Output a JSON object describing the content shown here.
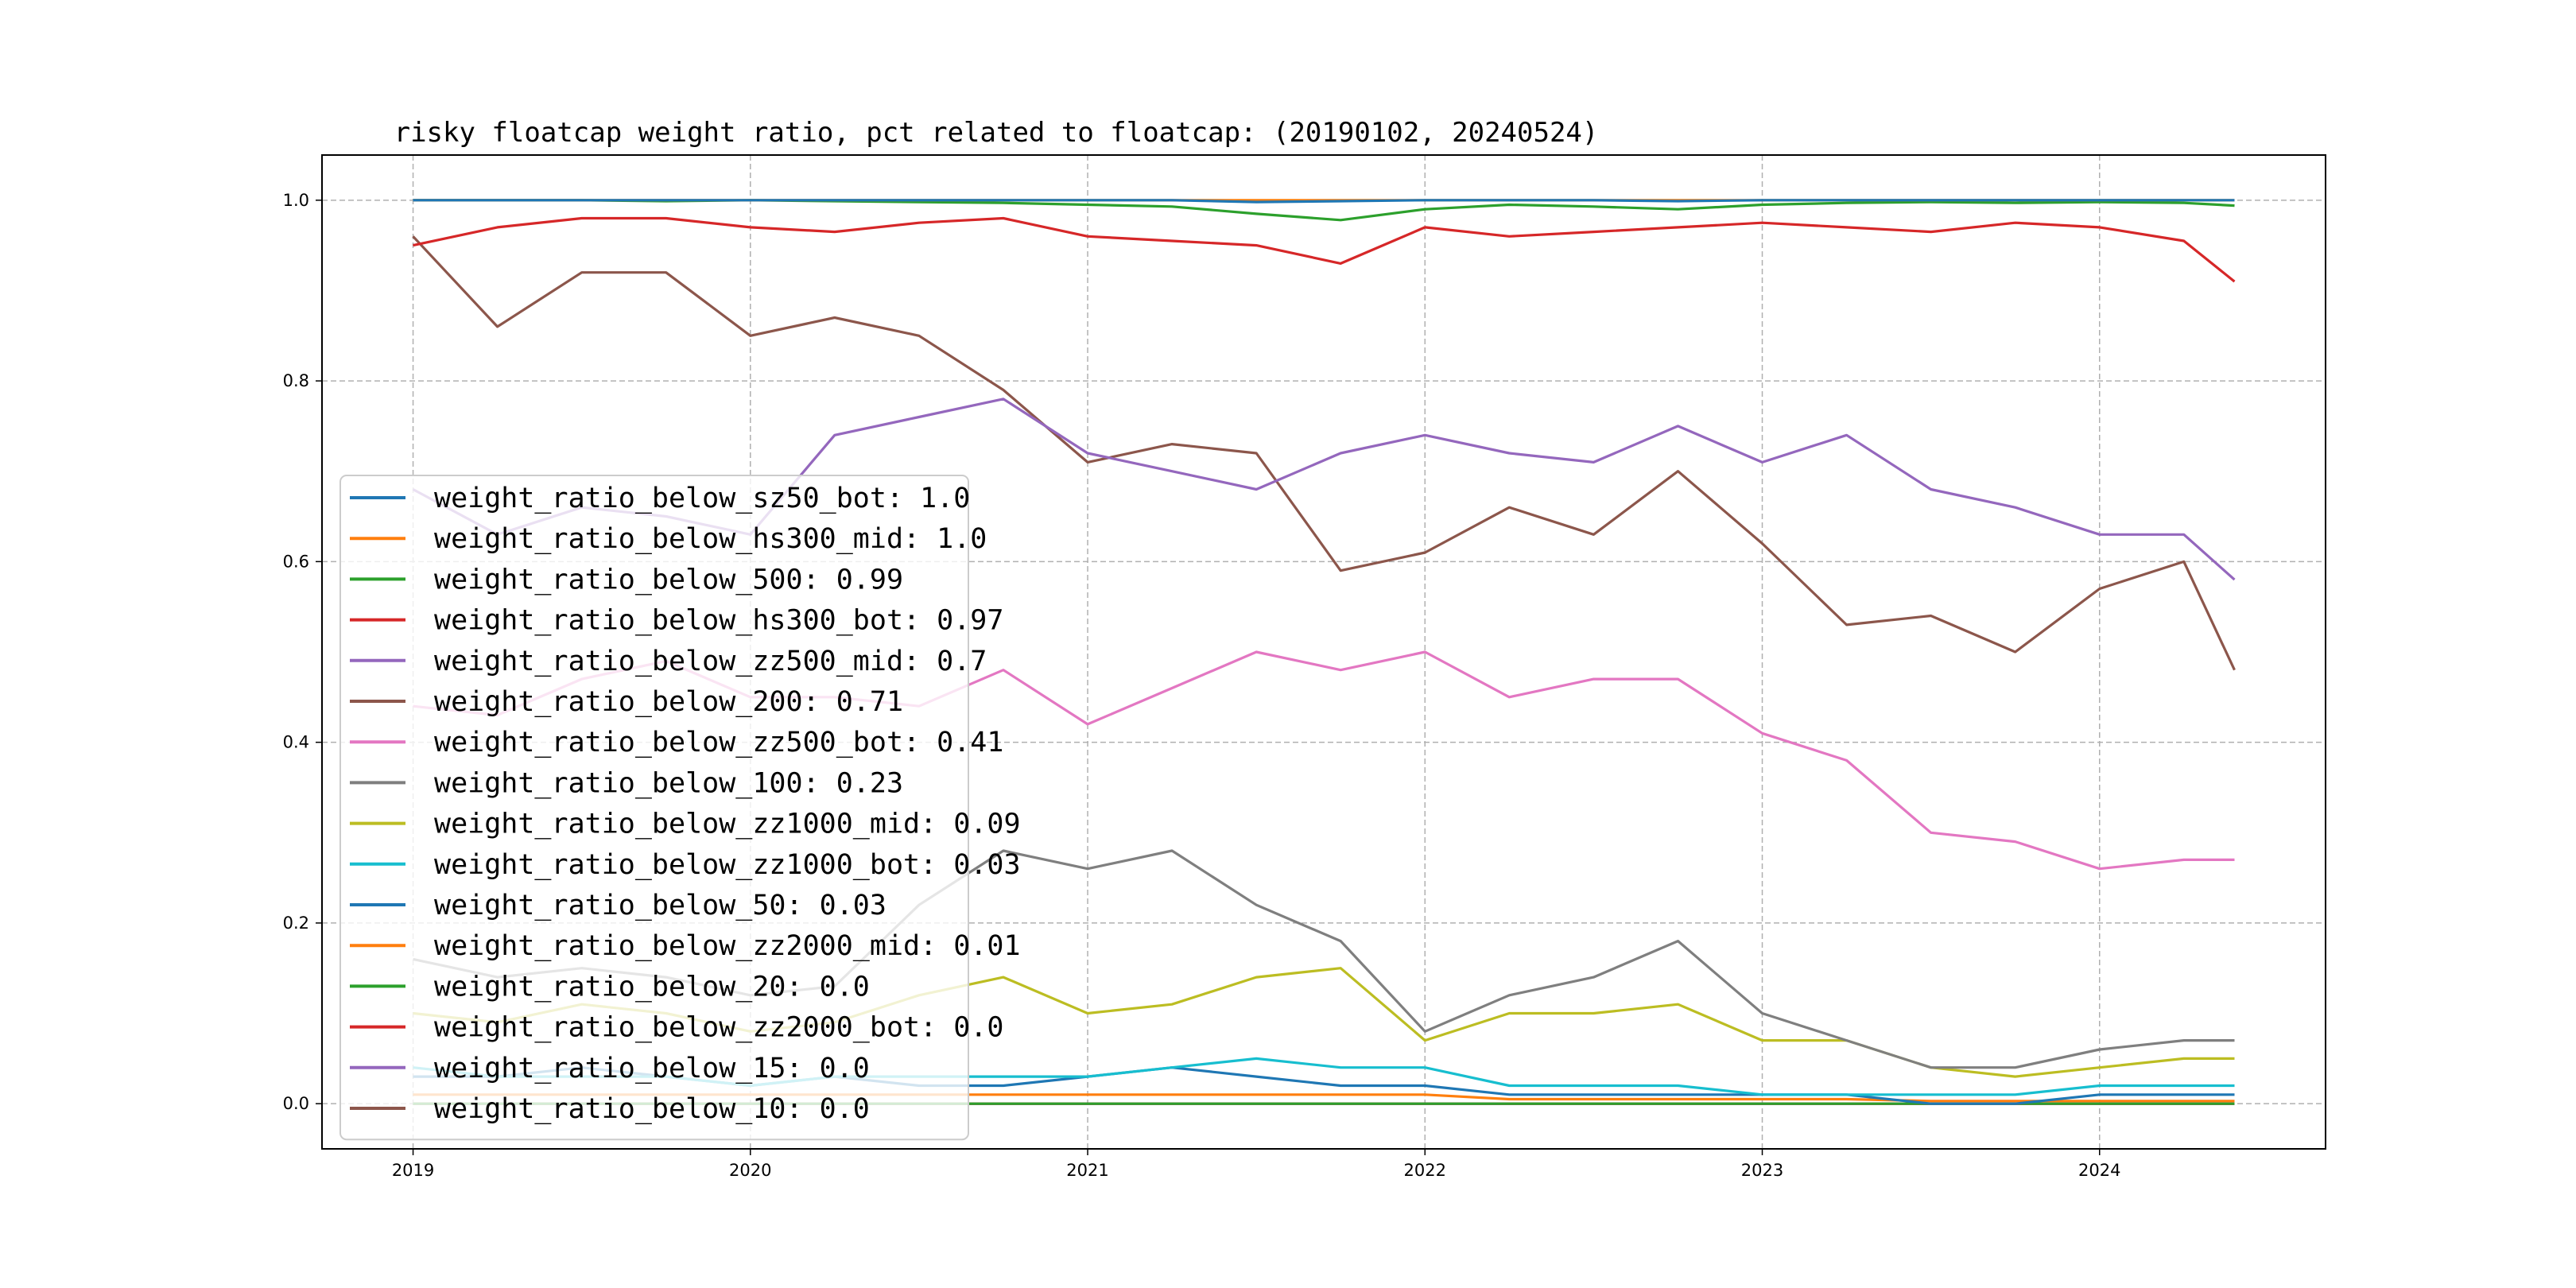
{
  "chart_data": {
    "type": "line",
    "title": "risky floatcap weight ratio, pct related to floatcap: (20190102, 20240524)",
    "xlabel": "",
    "ylabel": "",
    "xlim": [
      2018.73,
      2024.67
    ],
    "ylim": [
      -0.05,
      1.05
    ],
    "grid": true,
    "grid_style": "dashed",
    "legend_position": "center-left",
    "xticks": [
      {
        "value": 2019,
        "label": "2019"
      },
      {
        "value": 2020,
        "label": "2020"
      },
      {
        "value": 2021,
        "label": "2021"
      },
      {
        "value": 2022,
        "label": "2022"
      },
      {
        "value": 2023,
        "label": "2023"
      },
      {
        "value": 2024,
        "label": "2024"
      }
    ],
    "yticks": [
      {
        "value": 0.0,
        "label": "0.0"
      },
      {
        "value": 0.2,
        "label": "0.2"
      },
      {
        "value": 0.4,
        "label": "0.4"
      },
      {
        "value": 0.6,
        "label": "0.6"
      },
      {
        "value": 0.8,
        "label": "0.8"
      },
      {
        "value": 1.0,
        "label": "1.0"
      }
    ],
    "x": [
      2019.0,
      2019.25,
      2019.5,
      2019.75,
      2020.0,
      2020.25,
      2020.5,
      2020.75,
      2021.0,
      2021.25,
      2021.5,
      2021.75,
      2022.0,
      2022.25,
      2022.5,
      2022.75,
      2023.0,
      2023.25,
      2023.5,
      2023.75,
      2024.0,
      2024.25,
      2024.4
    ],
    "series": [
      {
        "name": "weight_ratio_below_sz50_bot",
        "legend": "weight_ratio_below_sz50_bot: 1.0",
        "color": "#1f77b4",
        "values": [
          1.0,
          1.0,
          1.0,
          1.0,
          1.0,
          1.0,
          1.0,
          1.0,
          1.0,
          1.0,
          0.998,
          0.999,
          1.0,
          1.0,
          1.0,
          0.999,
          1.0,
          1.0,
          1.0,
          1.0,
          1.0,
          1.0,
          1.0
        ]
      },
      {
        "name": "weight_ratio_below_hs300_mid",
        "legend": "weight_ratio_below_hs300_mid: 1.0",
        "color": "#ff7f0e",
        "values": [
          1.0,
          1.0,
          1.0,
          1.0,
          1.0,
          1.0,
          1.0,
          1.0,
          1.0,
          1.0,
          1.0,
          1.0,
          1.0,
          1.0,
          1.0,
          1.0,
          1.0,
          1.0,
          1.0,
          1.0,
          1.0,
          1.0,
          1.0
        ]
      },
      {
        "name": "weight_ratio_below_500",
        "legend": "weight_ratio_below_500: 0.99",
        "color": "#2ca02c",
        "values": [
          1.0,
          1.0,
          1.0,
          0.999,
          1.0,
          0.999,
          0.998,
          0.997,
          0.995,
          0.993,
          0.985,
          0.978,
          0.99,
          0.995,
          0.993,
          0.99,
          0.995,
          0.997,
          0.998,
          0.997,
          0.998,
          0.997,
          0.994
        ]
      },
      {
        "name": "weight_ratio_below_hs300_bot",
        "legend": "weight_ratio_below_hs300_bot: 0.97",
        "color": "#d62728",
        "values": [
          0.95,
          0.97,
          0.98,
          0.98,
          0.97,
          0.965,
          0.975,
          0.98,
          0.96,
          0.955,
          0.95,
          0.93,
          0.97,
          0.96,
          0.965,
          0.97,
          0.975,
          0.97,
          0.965,
          0.975,
          0.97,
          0.955,
          0.91
        ]
      },
      {
        "name": "weight_ratio_below_zz500_mid",
        "legend": "weight_ratio_below_zz500_mid: 0.7",
        "color": "#9467bd",
        "values": [
          0.68,
          0.63,
          0.66,
          0.65,
          0.63,
          0.74,
          0.76,
          0.78,
          0.72,
          0.7,
          0.68,
          0.72,
          0.74,
          0.72,
          0.71,
          0.75,
          0.71,
          0.74,
          0.68,
          0.66,
          0.63,
          0.63,
          0.58
        ]
      },
      {
        "name": "weight_ratio_below_200",
        "legend": "weight_ratio_below_200: 0.71",
        "color": "#8c564b",
        "values": [
          0.96,
          0.86,
          0.92,
          0.92,
          0.85,
          0.87,
          0.85,
          0.79,
          0.71,
          0.73,
          0.72,
          0.59,
          0.61,
          0.66,
          0.63,
          0.7,
          0.62,
          0.53,
          0.54,
          0.5,
          0.57,
          0.6,
          0.48
        ]
      },
      {
        "name": "weight_ratio_below_zz500_bot",
        "legend": "weight_ratio_below_zz500_bot: 0.41",
        "color": "#e377c2",
        "values": [
          0.44,
          0.43,
          0.47,
          0.49,
          0.45,
          0.45,
          0.44,
          0.48,
          0.42,
          0.46,
          0.5,
          0.48,
          0.5,
          0.45,
          0.47,
          0.47,
          0.41,
          0.38,
          0.3,
          0.29,
          0.26,
          0.27,
          0.27
        ]
      },
      {
        "name": "weight_ratio_below_100",
        "legend": "weight_ratio_below_100: 0.23",
        "color": "#7f7f7f",
        "values": [
          0.16,
          0.14,
          0.15,
          0.14,
          0.12,
          0.13,
          0.22,
          0.28,
          0.26,
          0.28,
          0.22,
          0.18,
          0.08,
          0.12,
          0.14,
          0.18,
          0.1,
          0.07,
          0.04,
          0.04,
          0.06,
          0.07,
          0.07
        ]
      },
      {
        "name": "weight_ratio_below_zz1000_mid",
        "legend": "weight_ratio_below_zz1000_mid: 0.09",
        "color": "#bcbd22",
        "values": [
          0.1,
          0.09,
          0.11,
          0.1,
          0.08,
          0.09,
          0.12,
          0.14,
          0.1,
          0.11,
          0.14,
          0.15,
          0.07,
          0.1,
          0.1,
          0.11,
          0.07,
          0.07,
          0.04,
          0.03,
          0.04,
          0.05,
          0.05
        ]
      },
      {
        "name": "weight_ratio_below_zz1000_bot",
        "legend": "weight_ratio_below_zz1000_bot: 0.03",
        "color": "#17becf",
        "values": [
          0.04,
          0.03,
          0.03,
          0.03,
          0.02,
          0.03,
          0.03,
          0.03,
          0.03,
          0.04,
          0.05,
          0.04,
          0.04,
          0.02,
          0.02,
          0.02,
          0.01,
          0.01,
          0.01,
          0.01,
          0.02,
          0.02,
          0.02
        ]
      },
      {
        "name": "weight_ratio_below_50",
        "legend": "weight_ratio_below_50: 0.03",
        "color": "#1f77b4",
        "values": [
          0.03,
          0.03,
          0.04,
          0.03,
          0.02,
          0.03,
          0.02,
          0.02,
          0.03,
          0.04,
          0.03,
          0.02,
          0.02,
          0.01,
          0.01,
          0.01,
          0.01,
          0.01,
          0.0,
          0.0,
          0.01,
          0.01,
          0.01
        ]
      },
      {
        "name": "weight_ratio_below_zz2000_mid",
        "legend": "weight_ratio_below_zz2000_mid: 0.01",
        "color": "#ff7f0e",
        "values": [
          0.01,
          0.01,
          0.01,
          0.01,
          0.01,
          0.01,
          0.01,
          0.01,
          0.01,
          0.01,
          0.01,
          0.01,
          0.01,
          0.005,
          0.005,
          0.005,
          0.005,
          0.005,
          0.003,
          0.003,
          0.003,
          0.003,
          0.003
        ]
      },
      {
        "name": "weight_ratio_below_20",
        "legend": "weight_ratio_below_20: 0.0",
        "color": "#2ca02c",
        "values": [
          0.0,
          0.0,
          0.0,
          0.0,
          0.0,
          0.0,
          0.0,
          0.0,
          0.0,
          0.0,
          0.0,
          0.0,
          0.0,
          0.0,
          0.0,
          0.0,
          0.0,
          0.0,
          0.0,
          0.0,
          0.0,
          0.0,
          0.0
        ]
      },
      {
        "name": "weight_ratio_below_zz2000_bot",
        "legend": "weight_ratio_below_zz2000_bot: 0.0",
        "color": "#d62728",
        "values": [
          0.0,
          0.0,
          0.0,
          0.0,
          0.0,
          0.0,
          0.0,
          0.0,
          0.0,
          0.0,
          0.0,
          0.0,
          0.0,
          0.0,
          0.0,
          0.0,
          0.0,
          0.0,
          0.0,
          0.0,
          0.0,
          0.0,
          0.0
        ]
      },
      {
        "name": "weight_ratio_below_15",
        "legend": "weight_ratio_below_15: 0.0",
        "color": "#9467bd",
        "values": [
          0.0,
          0.0,
          0.0,
          0.0,
          0.0,
          0.0,
          0.0,
          0.0,
          0.0,
          0.0,
          0.0,
          0.0,
          0.0,
          0.0,
          0.0,
          0.0,
          0.0,
          0.0,
          0.0,
          0.0,
          0.0,
          0.0,
          0.0
        ]
      },
      {
        "name": "weight_ratio_below_10",
        "legend": "weight_ratio_below_10: 0.0",
        "color": "#8c564b",
        "values": [
          0.0,
          0.0,
          0.0,
          0.0,
          0.0,
          0.0,
          0.0,
          0.0,
          0.0,
          0.0,
          0.0,
          0.0,
          0.0,
          0.0,
          0.0,
          0.0,
          0.0,
          0.0,
          0.0,
          0.0,
          0.0,
          0.0,
          0.0
        ]
      }
    ]
  }
}
